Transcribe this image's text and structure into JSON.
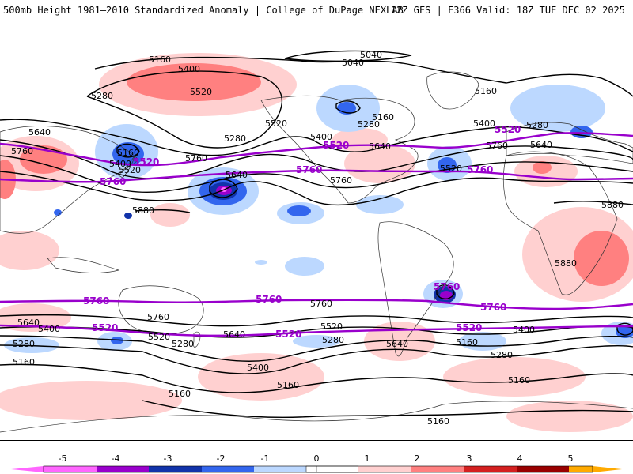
{
  "header": {
    "title": "500mb Height 1981–2010 Standardized Anomaly | College of DuPage NEXLAB",
    "run_info": "12Z GFS | F366 Valid: 18Z TUE DEC 02 2025"
  },
  "colors": {
    "neg5": "#ff66ff",
    "neg4": "#9900cc",
    "neg3": "#1133aa",
    "neg2": "#3366ee",
    "neg1": "#bcd8ff",
    "pos1": "#ffd0d0",
    "pos2": "#ff8080",
    "pos3": "#d42020",
    "pos4": "#990000",
    "pos5": "#ffaa00",
    "contour": "#000000",
    "highlight_contour": "#9900cc"
  },
  "colorbar": {
    "ticks": [
      "-5",
      "-4",
      "-3",
      "-2",
      "-1",
      "0",
      "1",
      "2",
      "3",
      "4",
      "5"
    ]
  },
  "contour_labels": {
    "c5040a": "5040",
    "c5040b": "5040",
    "c5160a": "5160",
    "c5160b": "5160",
    "c5160c": "5160",
    "c5160d": "5160",
    "c5160e": "5160",
    "c5160f": "5160",
    "c5160g": "5160",
    "c5160h": "5160",
    "c5160i": "5160",
    "c5160j": "5160",
    "c5280a": "5280",
    "c5280b": "5280",
    "c5280c": "5280",
    "c5280d": "5280",
    "c5280e": "5280",
    "c5280f": "5280",
    "c5280g": "5280",
    "c5280h": "5280",
    "c5400a": "5400",
    "c5400b": "5400",
    "c5400c": "5400",
    "c5400d": "5400",
    "c5400e": "5400",
    "c5400f": "5400",
    "c5400g": "5400",
    "c5520a": "5520",
    "c5520b": "5520",
    "c5520c": "5520",
    "c5520d": "5520",
    "c5520e": "5520",
    "c5520f": "5520",
    "c5640a": "5640",
    "c5640b": "5640",
    "c5640c": "5640",
    "c5640d": "5640",
    "c5640e": "5640",
    "c5640f": "5640",
    "c5640g": "5640",
    "c5760a": "5760",
    "c5760b": "5760",
    "c5760c": "5760",
    "c5760d": "5760",
    "c5760e": "5760",
    "c5760f": "5760",
    "c5880a": "5880",
    "c5880b": "5880",
    "c5880c": "5880",
    "p5520a": "5520",
    "p5520b": "5520",
    "p5520c": "5520",
    "p5520d": "5520",
    "p5520e": "5520",
    "p5520f": "5520",
    "p5760a": "5760",
    "p5760b": "5760",
    "p5760c": "5760",
    "p5760d": "5760",
    "p5760e": "5760",
    "p5760f": "5760",
    "p5760g": "5760"
  }
}
